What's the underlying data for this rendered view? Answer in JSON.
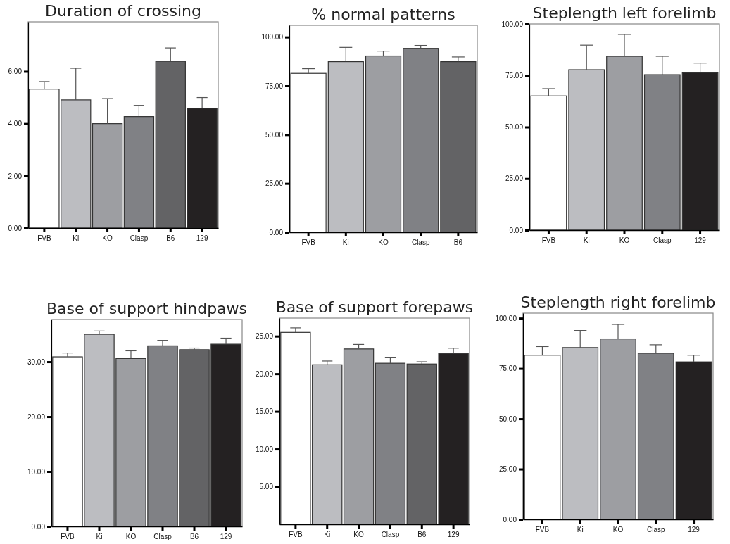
{
  "chart_data": [
    {
      "type": "bar",
      "title": "Duration of crossing",
      "categories": [
        "FVB",
        "Ki",
        "KO",
        "Clasp",
        "B6",
        "129"
      ],
      "values": [
        5.32,
        4.91,
        4.0,
        4.27,
        6.39,
        4.59
      ],
      "colors": [
        "#ffffff",
        "#bcbdc1",
        "#9d9ea2",
        "#808185",
        "#636365",
        "#242122"
      ],
      "errors": [
        [
          5.32,
          5.61
        ],
        [
          4.91,
          6.12
        ],
        [
          4.0,
          4.96
        ],
        [
          4.27,
          4.7
        ],
        [
          6.39,
          6.9
        ],
        [
          4.59,
          5.0
        ]
      ],
      "ylim": [
        0,
        7.9
      ],
      "yticks": [
        {
          "value": 0,
          "label": "0.00"
        },
        {
          "value": 2,
          "label": "2.00"
        },
        {
          "value": 4,
          "label": "4.00"
        },
        {
          "value": 6,
          "label": "6.00"
        }
      ]
    },
    {
      "type": "bar",
      "title": "% normal patterns",
      "categories": [
        "FVB",
        "Ki",
        "KO",
        "Clasp",
        "B6"
      ],
      "values": [
        81.4,
        87.4,
        90.3,
        94.2,
        87.4
      ],
      "colors": [
        "#ffffff",
        "#bcbdc1",
        "#9d9ea2",
        "#808185",
        "#636365"
      ],
      "errors": [
        [
          81.4,
          83.8
        ],
        [
          87.4,
          94.7
        ],
        [
          90.3,
          92.8
        ],
        [
          94.2,
          95.7
        ],
        [
          87.4,
          89.8
        ]
      ],
      "ylim": [
        0,
        106
      ],
      "yticks": [
        {
          "value": 0,
          "label": "0.00"
        },
        {
          "value": 25,
          "label": "25.00"
        },
        {
          "value": 50,
          "label": "50.00"
        },
        {
          "value": 75,
          "label": "75.00"
        },
        {
          "value": 100,
          "label": "100.00"
        }
      ]
    },
    {
      "type": "bar",
      "title": "Steplength left forelimb",
      "categories": [
        "FVB",
        "Ki",
        "KO",
        "Clasp",
        "129"
      ],
      "values": [
        65.1,
        77.8,
        84.3,
        75.4,
        76.3
      ],
      "colors": [
        "#ffffff",
        "#bcbdc1",
        "#9d9ea2",
        "#808185",
        "#242122"
      ],
      "errors": [
        [
          65.1,
          68.6
        ],
        [
          77.8,
          89.7
        ],
        [
          84.3,
          94.9
        ],
        [
          75.4,
          84.3
        ],
        [
          76.3,
          81.0
        ]
      ],
      "ylim": [
        0,
        100
      ],
      "yticks": [
        {
          "value": 0,
          "label": "0.00"
        },
        {
          "value": 25,
          "label": "25.00"
        },
        {
          "value": 50,
          "label": "50.00"
        },
        {
          "value": 75,
          "label": "75.00"
        },
        {
          "value": 100,
          "label": "100.00"
        }
      ]
    },
    {
      "type": "bar",
      "title": "Base of support hindpaws",
      "categories": [
        "FVB",
        "Ki",
        "KO",
        "Clasp",
        "B6",
        "129"
      ],
      "values": [
        30.9,
        35.0,
        30.6,
        32.9,
        32.2,
        33.2
      ],
      "colors": [
        "#ffffff",
        "#bcbdc1",
        "#9d9ea2",
        "#808185",
        "#636365",
        "#242122"
      ],
      "errors": [
        [
          30.9,
          31.6
        ],
        [
          35.0,
          35.6
        ],
        [
          30.6,
          32.0
        ],
        [
          32.9,
          33.9
        ],
        [
          32.2,
          32.5
        ],
        [
          33.2,
          34.3
        ]
      ],
      "ylim": [
        0,
        37.7
      ],
      "yticks": [
        {
          "value": 0,
          "label": "0.00"
        },
        {
          "value": 10,
          "label": "10.00"
        },
        {
          "value": 20,
          "label": "20.00"
        },
        {
          "value": 30,
          "label": "30.00"
        }
      ]
    },
    {
      "type": "bar",
      "title": "Base of support forepaws",
      "categories": [
        "FVB",
        "Ki",
        "KO",
        "Clasp",
        "B6",
        "129"
      ],
      "values": [
        25.5,
        21.2,
        23.3,
        21.4,
        21.3,
        22.7
      ],
      "colors": [
        "#ffffff",
        "#bcbdc1",
        "#9d9ea2",
        "#808185",
        "#636365",
        "#242122"
      ],
      "errors": [
        [
          25.5,
          26.1
        ],
        [
          21.2,
          21.7
        ],
        [
          23.3,
          23.9
        ],
        [
          21.4,
          22.2
        ],
        [
          21.3,
          21.6
        ],
        [
          22.7,
          23.4
        ]
      ],
      "ylim": [
        0,
        27.4
      ],
      "yticks": [
        {
          "value": 5,
          "label": "5.00"
        },
        {
          "value": 10,
          "label": "10.00"
        },
        {
          "value": 15,
          "label": "15.00"
        },
        {
          "value": 20,
          "label": "20.00"
        },
        {
          "value": 25,
          "label": "25.00"
        }
      ]
    },
    {
      "type": "bar",
      "title": "Steplength right forelimb",
      "categories": [
        "FVB",
        "Ki",
        "KO",
        "Clasp",
        "129"
      ],
      "values": [
        81.6,
        85.4,
        89.7,
        82.6,
        78.3
      ],
      "colors": [
        "#ffffff",
        "#bcbdc1",
        "#9d9ea2",
        "#808185",
        "#242122"
      ],
      "errors": [
        [
          81.6,
          85.9
        ],
        [
          85.4,
          93.9
        ],
        [
          89.7,
          96.9
        ],
        [
          82.6,
          86.8
        ],
        [
          78.3,
          81.6
        ]
      ],
      "ylim": [
        0,
        102.5
      ],
      "yticks": [
        {
          "value": 0,
          "label": "0.00"
        },
        {
          "value": 25,
          "label": "25.00"
        },
        {
          "value": 50,
          "label": "50.00"
        },
        {
          "value": 75,
          "label": "75.00"
        },
        {
          "value": 100,
          "label": "100.00"
        }
      ]
    }
  ]
}
